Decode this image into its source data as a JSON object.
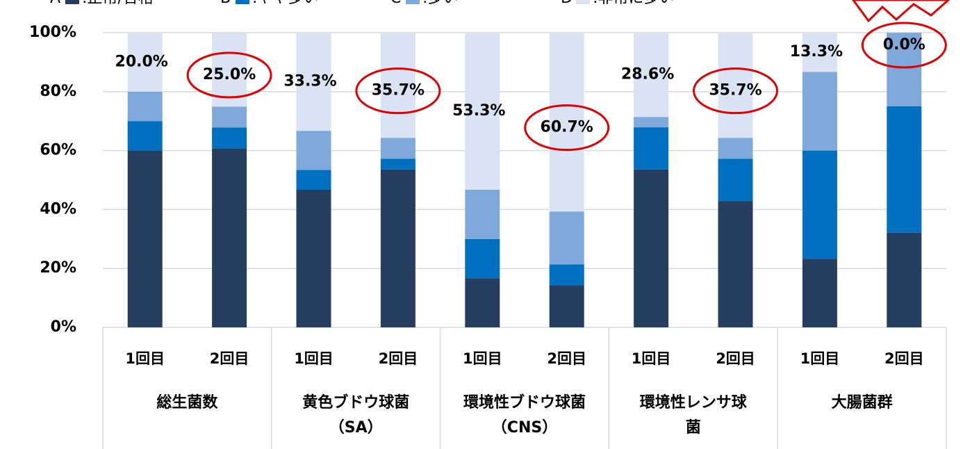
{
  "chart_data": {
    "type": "stacked_bar",
    "categories": [
      "1回目",
      "2回目",
      "1回目",
      "2回目",
      "1回目",
      "2回目",
      "1回目",
      "2回目",
      "1回目",
      "2回目"
    ],
    "groups": [
      [
        "総生菌数"
      ],
      [
        "黄色ブドウ球菌",
        "（SA）"
      ],
      [
        "環境性ブドウ球菌",
        "（CNS）"
      ],
      [
        "環境性レンサ球",
        "菌"
      ],
      [
        "大腸菌群"
      ]
    ],
    "series": [
      {
        "key": "A",
        "name": ":正常/合格",
        "color": "#253d5e",
        "values": [
          60,
          60.7,
          46.7,
          53.6,
          16.7,
          14.3,
          53.6,
          42.9,
          23.3,
          32.1
        ]
      },
      {
        "key": "B",
        "name": ":やや多い",
        "color": "#0070c0",
        "values": [
          10,
          7.1,
          6.7,
          3.6,
          13.3,
          7.1,
          14.3,
          14.3,
          36.7,
          42.9
        ]
      },
      {
        "key": "C",
        "name": ":多い",
        "color": "#7fa9da",
        "values": [
          10,
          7.1,
          13.3,
          7.1,
          16.7,
          17.9,
          3.5,
          7.1,
          26.7,
          25.0
        ]
      },
      {
        "key": "D",
        "name": ":非常に多い",
        "color": "#dae3f3",
        "values": [
          20.0,
          25.0,
          33.3,
          35.7,
          53.3,
          60.7,
          28.6,
          35.7,
          13.3,
          0.0
        ],
        "value_labels": [
          "20.0%",
          "25.0%",
          "33.3%",
          "35.7%",
          "53.3%",
          "60.7%",
          "28.6%",
          "35.7%",
          "13.3%",
          "0.0%"
        ]
      }
    ],
    "ylim": [
      0,
      100
    ],
    "yticks": [
      {
        "value": 0,
        "label": "0%"
      },
      {
        "value": 20,
        "label": "20%"
      },
      {
        "value": 40,
        "label": "40%"
      },
      {
        "value": 60,
        "label": "60%"
      },
      {
        "value": 80,
        "label": "80%"
      },
      {
        "value": 100,
        "label": "100%"
      }
    ],
    "grid": true,
    "highlight_color": "#e00000"
  }
}
